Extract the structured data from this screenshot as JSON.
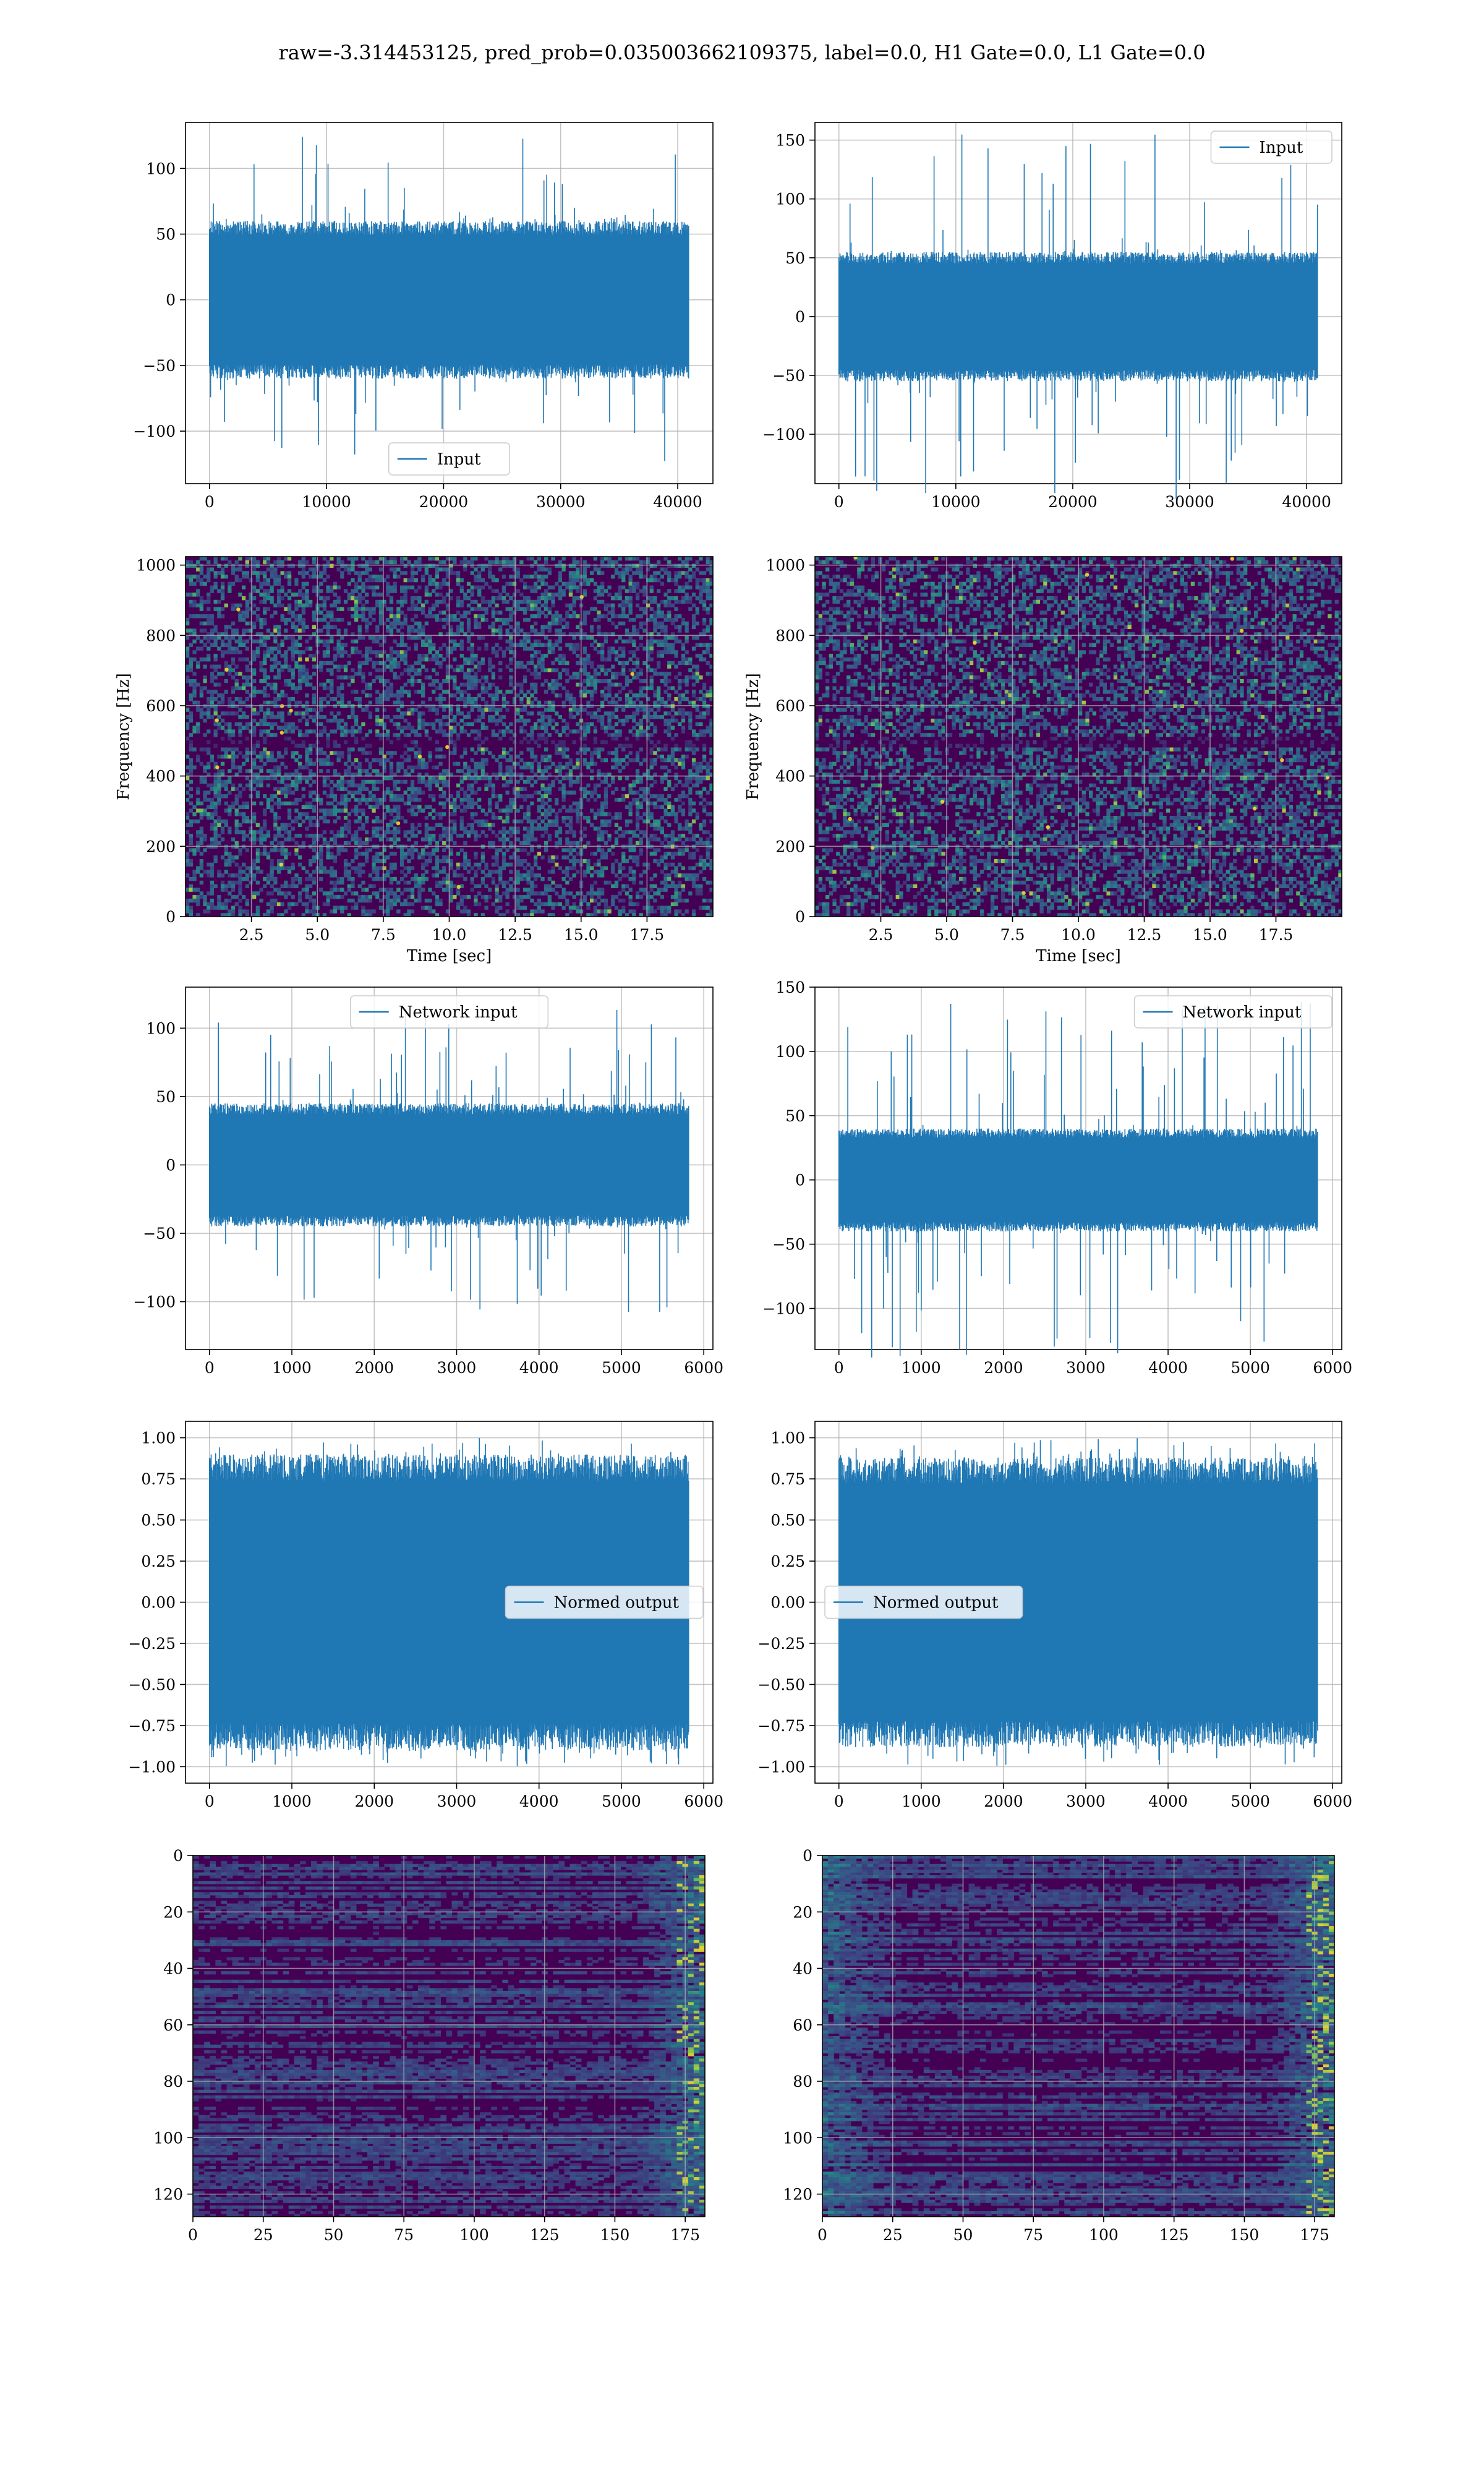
{
  "figure": {
    "suptitle": "raw=-3.314453125, pred_prob=0.035003662109375, label=0.0, H1 Gate=0.0, L1 Gate=0.0",
    "colors": {
      "line": "#1f77b4",
      "grid": "#b0b0b0",
      "cmap_low": "#440154",
      "cmap_mid": "#3b528b",
      "cmap_teal": "#21918c",
      "cmap_green": "#5ec962",
      "cmap_high": "#fde725"
    }
  },
  "chart_data": [
    {
      "id": "input-h1",
      "type": "line",
      "series": [
        {
          "name": "Input",
          "kind": "noise",
          "x_range": [
            0,
            40960
          ],
          "amplitude_typical": 60,
          "amplitude_peak": 125
        }
      ],
      "xlim": [
        -2048,
        43008
      ],
      "ylim": [
        -140,
        135
      ],
      "xticks": [
        0,
        10000,
        20000,
        30000,
        40000
      ],
      "xtick_labels": [
        "0",
        "10000",
        "20000",
        "30000",
        "40000"
      ],
      "yticks": [
        -100,
        -50,
        0,
        50,
        100
      ],
      "ytick_labels": [
        "−100",
        "−50",
        "0",
        "50",
        "100"
      ],
      "xlabel": "",
      "ylabel": "",
      "legend": "lower-center",
      "grid": true
    },
    {
      "id": "input-l1",
      "type": "line",
      "series": [
        {
          "name": "Input",
          "kind": "noise",
          "x_range": [
            0,
            40960
          ],
          "amplitude_typical": 55,
          "amplitude_peak": 155
        }
      ],
      "xlim": [
        -2048,
        43008
      ],
      "ylim": [
        -142,
        165
      ],
      "xticks": [
        0,
        10000,
        20000,
        30000,
        40000
      ],
      "xtick_labels": [
        "0",
        "10000",
        "20000",
        "30000",
        "40000"
      ],
      "yticks": [
        -100,
        -50,
        0,
        50,
        100,
        150
      ],
      "ytick_labels": [
        "−100",
        "−50",
        "0",
        "50",
        "100",
        "150"
      ],
      "xlabel": "",
      "ylabel": "",
      "legend": "upper-right",
      "grid": true
    },
    {
      "id": "spec-h1",
      "type": "heatmap",
      "xlim": [
        0,
        20
      ],
      "ylim": [
        0,
        1024
      ],
      "xticks": [
        2.5,
        5.0,
        7.5,
        10.0,
        12.5,
        15.0,
        17.5
      ],
      "xtick_labels": [
        "2.5",
        "5.0",
        "7.5",
        "10.0",
        "12.5",
        "15.0",
        "17.5"
      ],
      "yticks": [
        0,
        200,
        400,
        600,
        800,
        1000
      ],
      "ytick_labels": [
        "0",
        "200",
        "400",
        "600",
        "800",
        "1000"
      ],
      "xlabel": "Time [sec]",
      "ylabel": "Frequency [Hz]",
      "band_hz": 500,
      "grid": true
    },
    {
      "id": "spec-l1",
      "type": "heatmap",
      "xlim": [
        0,
        20
      ],
      "ylim": [
        0,
        1024
      ],
      "xticks": [
        2.5,
        5.0,
        7.5,
        10.0,
        12.5,
        15.0,
        17.5
      ],
      "xtick_labels": [
        "2.5",
        "5.0",
        "7.5",
        "10.0",
        "12.5",
        "15.0",
        "17.5"
      ],
      "yticks": [
        0,
        200,
        400,
        600,
        800,
        1000
      ],
      "ytick_labels": [
        "0",
        "200",
        "400",
        "600",
        "800",
        "1000"
      ],
      "xlabel": "Time [sec]",
      "ylabel": "Frequency [Hz]",
      "band_hz": 500,
      "grid": true
    },
    {
      "id": "net-h1",
      "type": "line",
      "series": [
        {
          "name": "Network input",
          "kind": "noise",
          "x_range": [
            0,
            5820
          ],
          "amplitude_typical": 45,
          "amplitude_peak": 115
        }
      ],
      "xlim": [
        -291,
        6111
      ],
      "ylim": [
        -135,
        130
      ],
      "xticks": [
        0,
        1000,
        2000,
        3000,
        4000,
        5000,
        6000
      ],
      "xtick_labels": [
        "0",
        "1000",
        "2000",
        "3000",
        "4000",
        "5000",
        "6000"
      ],
      "yticks": [
        -100,
        -50,
        0,
        50,
        100
      ],
      "ytick_labels": [
        "−100",
        "−50",
        "0",
        "50",
        "100"
      ],
      "xlabel": "",
      "ylabel": "",
      "legend": "upper-center",
      "grid": true
    },
    {
      "id": "net-l1",
      "type": "line",
      "series": [
        {
          "name": "Network input",
          "kind": "noise",
          "x_range": [
            0,
            5820
          ],
          "amplitude_typical": 40,
          "amplitude_peak": 140
        }
      ],
      "xlim": [
        -291,
        6111
      ],
      "ylim": [
        -132,
        150
      ],
      "xticks": [
        0,
        1000,
        2000,
        3000,
        4000,
        5000,
        6000
      ],
      "xtick_labels": [
        "0",
        "1000",
        "2000",
        "3000",
        "4000",
        "5000",
        "6000"
      ],
      "yticks": [
        -100,
        -50,
        0,
        50,
        100,
        150
      ],
      "ytick_labels": [
        "−100",
        "−50",
        "0",
        "50",
        "100",
        "150"
      ],
      "xlabel": "",
      "ylabel": "",
      "legend": "upper-right",
      "grid": true
    },
    {
      "id": "norm-h1",
      "type": "line",
      "series": [
        {
          "name": "Normed output",
          "kind": "noise",
          "x_range": [
            0,
            5820
          ],
          "amplitude_typical": 0.9,
          "amplitude_peak": 1.0
        }
      ],
      "xlim": [
        -291,
        6111
      ],
      "ylim": [
        -1.1,
        1.1
      ],
      "xticks": [
        0,
        1000,
        2000,
        3000,
        4000,
        5000,
        6000
      ],
      "xtick_labels": [
        "0",
        "1000",
        "2000",
        "3000",
        "4000",
        "5000",
        "6000"
      ],
      "yticks": [
        -1.0,
        -0.75,
        -0.5,
        -0.25,
        0.0,
        0.25,
        0.5,
        0.75,
        1.0
      ],
      "ytick_labels": [
        "−1.00",
        "−0.75",
        "−0.50",
        "−0.25",
        "0.00",
        "0.25",
        "0.50",
        "0.75",
        "1.00"
      ],
      "xlabel": "",
      "ylabel": "",
      "legend": "center-right",
      "grid": true
    },
    {
      "id": "norm-l1",
      "type": "line",
      "series": [
        {
          "name": "Normed output",
          "kind": "noise",
          "x_range": [
            0,
            5820
          ],
          "amplitude_typical": 0.88,
          "amplitude_peak": 1.0
        }
      ],
      "xlim": [
        -291,
        6111
      ],
      "ylim": [
        -1.1,
        1.1
      ],
      "xticks": [
        0,
        1000,
        2000,
        3000,
        4000,
        5000,
        6000
      ],
      "xtick_labels": [
        "0",
        "1000",
        "2000",
        "3000",
        "4000",
        "5000",
        "6000"
      ],
      "yticks": [
        -1.0,
        -0.75,
        -0.5,
        -0.25,
        0.0,
        0.25,
        0.5,
        0.75,
        1.0
      ],
      "ytick_labels": [
        "−1.00",
        "−0.75",
        "−0.50",
        "−0.25",
        "0.00",
        "0.25",
        "0.50",
        "0.75",
        "1.00"
      ],
      "xlabel": "",
      "ylabel": "",
      "legend": "center-left",
      "grid": true
    },
    {
      "id": "feat-h1",
      "type": "heatmap",
      "xlim": [
        0,
        182
      ],
      "ylim": [
        128,
        0
      ],
      "xticks": [
        0,
        25,
        50,
        75,
        100,
        125,
        150,
        175
      ],
      "xtick_labels": [
        "0",
        "25",
        "50",
        "75",
        "100",
        "125",
        "150",
        "175"
      ],
      "yticks": [
        0,
        20,
        40,
        60,
        80,
        100,
        120
      ],
      "ytick_labels": [
        "0",
        "20",
        "40",
        "60",
        "80",
        "100",
        "120"
      ],
      "xlabel": "",
      "ylabel": "",
      "grid": true
    },
    {
      "id": "feat-l1",
      "type": "heatmap",
      "xlim": [
        0,
        182
      ],
      "ylim": [
        128,
        0
      ],
      "xticks": [
        0,
        25,
        50,
        75,
        100,
        125,
        150,
        175
      ],
      "xtick_labels": [
        "0",
        "25",
        "50",
        "75",
        "100",
        "125",
        "150",
        "175"
      ],
      "yticks": [
        0,
        20,
        40,
        60,
        80,
        100,
        120
      ],
      "ytick_labels": [
        "0",
        "20",
        "40",
        "60",
        "80",
        "100",
        "120"
      ],
      "xlabel": "",
      "ylabel": "",
      "grid": true
    }
  ]
}
